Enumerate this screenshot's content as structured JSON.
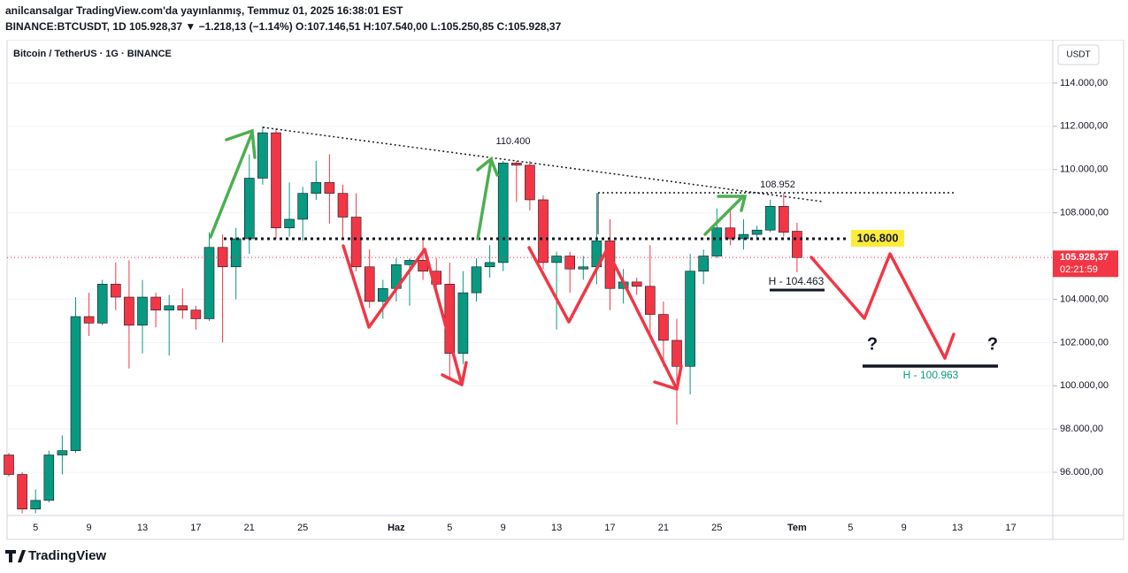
{
  "chart_data": {
    "type": "candlestick",
    "header_line1": "anilcansalgar TradingView.com'da yayınlanmış, Temmuz 01, 2025 16:38:01 EST",
    "header_line2": "BINANCE:BTCUSDT, 1D 105.928,37 ▼ −1.218,13 (−1.14%) O:107.146,51 H:107.540,00 L:105.250,85 C:105.928,37",
    "title": "Bitcoin / TetherUS · 1G · BINANCE",
    "currency": "USDT",
    "brand": "TradingView",
    "up_color": "#089981",
    "down_color": "#f23645",
    "categories": [
      null,
      null,
      "5",
      null,
      null,
      null,
      "9",
      null,
      null,
      null,
      "13",
      null,
      null,
      null,
      "17",
      null,
      null,
      null,
      "21",
      null,
      null,
      null,
      "25",
      null,
      null,
      null,
      null,
      null,
      null,
      "Haz",
      null,
      null,
      null,
      "5",
      null,
      null,
      null,
      "9",
      null,
      null,
      null,
      "13",
      null,
      null,
      null,
      "17",
      null,
      null,
      null,
      "21",
      null,
      null,
      null,
      "25",
      null,
      null,
      null,
      null,
      null,
      "Tem",
      null,
      null,
      null,
      "5",
      null,
      null,
      null,
      "9",
      null,
      null,
      null,
      "13",
      null,
      null,
      null,
      "17",
      null,
      null
    ],
    "open": [
      96800,
      95900,
      94300,
      94700,
      96800,
      97000,
      103200,
      102900,
      104700,
      104100,
      102800,
      104100,
      103500,
      103700,
      103500,
      103100,
      106400,
      105500,
      106800,
      109600,
      111700,
      107300,
      107700,
      108900,
      109400,
      108900,
      107800,
      105500,
      103900,
      104500,
      105600,
      105800,
      105300,
      104700,
      101500,
      104300,
      105500,
      105700,
      110300,
      110200,
      108600,
      105700,
      106000,
      105400,
      105500,
      106700,
      104500,
      104800,
      104600,
      103300,
      102100,
      100900,
      105300,
      106000,
      107300,
      106800,
      107000,
      107200,
      108300,
      107146.51,
      null,
      null,
      null,
      null,
      null,
      null,
      null,
      null,
      null,
      null,
      null,
      null,
      null,
      null,
      null,
      null,
      null,
      null
    ],
    "high": [
      96900,
      96000,
      95200,
      97000,
      97700,
      104100,
      104300,
      104900,
      105700,
      105800,
      104900,
      104300,
      104200,
      104500,
      103700,
      107100,
      107000,
      107300,
      110700,
      112000,
      111900,
      109400,
      109200,
      110400,
      110700,
      109300,
      108900,
      106300,
      104900,
      105900,
      105900,
      106800,
      105900,
      105700,
      105300,
      105900,
      106500,
      110400,
      110400,
      110400,
      108800,
      106200,
      106200,
      106000,
      108900,
      107700,
      105400,
      105000,
      106500,
      103900,
      103100,
      106100,
      106300,
      108200,
      108200,
      107700,
      107400,
      108600,
      108900,
      107540,
      null,
      null,
      null,
      null,
      null,
      null,
      null,
      null,
      null,
      null,
      null,
      null,
      null,
      null,
      null,
      null,
      null,
      null
    ],
    "low": [
      95800,
      94100,
      94100,
      94600,
      95900,
      96900,
      102300,
      102800,
      103500,
      100800,
      101500,
      102700,
      101400,
      103100,
      102600,
      103000,
      102000,
      104000,
      106100,
      109300,
      106800,
      106900,
      106700,
      108600,
      107500,
      106800,
      105300,
      103600,
      103100,
      103900,
      103700,
      104900,
      104200,
      100400,
      101000,
      103900,
      105000,
      105300,
      108500,
      108100,
      105400,
      102600,
      104300,
      104900,
      104700,
      103500,
      103800,
      104200,
      102400,
      100900,
      98200,
      99600,
      104700,
      105900,
      106500,
      106300,
      106800,
      107100,
      106900,
      105250.85,
      null,
      null,
      null,
      null,
      null,
      null,
      null,
      null,
      null,
      null,
      null,
      null,
      null,
      null,
      null,
      null,
      null,
      null
    ],
    "close": [
      95900,
      94300,
      94700,
      96800,
      97000,
      103200,
      102900,
      104700,
      104100,
      102800,
      104100,
      103500,
      103700,
      103500,
      103100,
      106400,
      105500,
      106800,
      109600,
      111700,
      107300,
      107700,
      108900,
      109400,
      108900,
      107800,
      105500,
      103900,
      104500,
      105600,
      105800,
      105300,
      104700,
      101500,
      104300,
      105500,
      105700,
      110300,
      110200,
      108600,
      105700,
      106000,
      105400,
      105500,
      106700,
      104500,
      104800,
      104600,
      103300,
      102100,
      100900,
      105300,
      106000,
      107300,
      106800,
      107000,
      107200,
      108300,
      107100,
      105928.37,
      null,
      null,
      null,
      null,
      null,
      null,
      null,
      null,
      null,
      null,
      null,
      null,
      null,
      null,
      null,
      null,
      null,
      null
    ],
    "ylim": [
      94000,
      116000
    ],
    "yticks": [
      {
        "value": 96000,
        "label": "96.000,00"
      },
      {
        "value": 98000,
        "label": "98.000,00"
      },
      {
        "value": 100000,
        "label": "100.000,00"
      },
      {
        "value": 102000,
        "label": "102.000,00"
      },
      {
        "value": 104000,
        "label": "104.000,00"
      },
      {
        "value": 106000,
        "label": "106.000,00"
      },
      {
        "value": 108000,
        "label": "108.000,00"
      },
      {
        "value": 110000,
        "label": "110.000,00"
      },
      {
        "value": 112000,
        "label": "112.000,00"
      },
      {
        "value": 114000,
        "label": "114.000,00"
      }
    ],
    "last_price": {
      "value": 105928.37,
      "label": "105.928,37"
    },
    "countdown": "02:21:59",
    "annotations": [
      "110.400",
      "108.952",
      "106.800",
      "H - 104.463",
      "H - 100.963",
      "?",
      "?"
    ]
  }
}
